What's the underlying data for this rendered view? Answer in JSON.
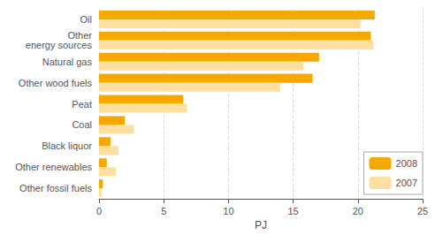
{
  "chart_data": {
    "type": "bar",
    "orientation": "horizontal",
    "categories": [
      "Other fossil fuels",
      "Other renewables",
      "Black liquor",
      "Coal",
      "Peat",
      "Other wood fuels",
      "Natural gas",
      "Other\nenergy sources",
      "Oil"
    ],
    "series": [
      {
        "name": "2008",
        "color": "#F5A800",
        "values": [
          0.3,
          0.6,
          0.9,
          2.0,
          6.5,
          16.5,
          17.0,
          21.0,
          21.3
        ]
      },
      {
        "name": "2007",
        "color": "#FDDFA0",
        "values": [
          0.2,
          1.3,
          1.5,
          2.7,
          6.8,
          14.0,
          15.8,
          21.2,
          20.2
        ]
      }
    ],
    "xlabel": "PJ",
    "xlim": [
      0,
      25
    ],
    "xticks": [
      0,
      5,
      10,
      15,
      20,
      25
    ],
    "grid": true,
    "legend": "lower right"
  }
}
